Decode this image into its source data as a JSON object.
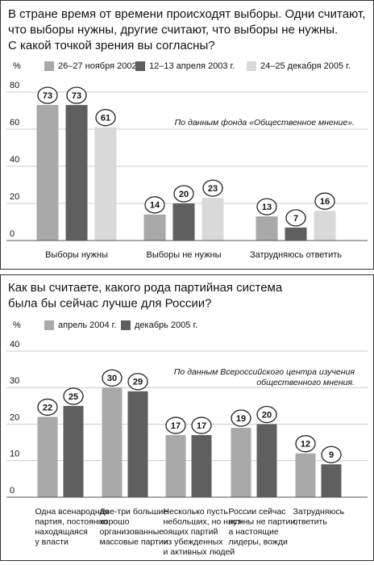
{
  "chart_data": [
    {
      "type": "bar",
      "title": "В стране время от времени происходят выборы. Одни считают,\nчто выборы нужны, другие считают, что выборы не нужны.\nС какой точкой зрения вы согласны?",
      "y_label": "%",
      "note": "По данным фонда «Общественное мнение».",
      "categories": [
        "Выборы нужны",
        "Выборы не нужны",
        "Затрудняюсь ответить"
      ],
      "series": [
        {
          "name": "26–27 ноября 2002 г.",
          "color": "#a9a9a9",
          "values": [
            73,
            14,
            13
          ]
        },
        {
          "name": "12–13 апреля 2003 г.",
          "color": "#5f5f5f",
          "values": [
            73,
            20,
            7
          ]
        },
        {
          "name": "24–25 декабря 2005 г.",
          "color": "#d9d9d9",
          "values": [
            61,
            23,
            16
          ]
        }
      ],
      "ylim": [
        0,
        80
      ],
      "yticks": [
        0,
        20,
        40,
        60,
        80
      ],
      "grid": true
    },
    {
      "type": "bar",
      "title": "Как вы считаете, какого рода партийная система\nбыла бы сейчас лучше для России?",
      "y_label": "%",
      "note": "По данным Всероссийского центра изучения\nобщественного мнения.",
      "categories": [
        "Одна всенародная\nпартия, постоянно\nнаходящаяся\nу власти",
        "Две-три большие\nхорошо\nорганизованные\nмассовые партии",
        "Несколько пусть\nнебольших, но наст-\nоящих партий\nиз убежденных\nи активных людей",
        "России сейчас\nнужны не партии,\nа настоящие\nлидеры, вожди",
        "Затрудняюсь\nответить"
      ],
      "series": [
        {
          "name": "апрель 2004 г.",
          "color": "#a9a9a9",
          "values": [
            22,
            30,
            17,
            19,
            12
          ]
        },
        {
          "name": "декабрь 2005 г.",
          "color": "#5f5f5f",
          "values": [
            25,
            29,
            17,
            20,
            9
          ]
        }
      ],
      "ylim": [
        0,
        40
      ],
      "yticks": [
        0,
        10,
        20,
        30,
        40
      ],
      "grid": true
    }
  ]
}
